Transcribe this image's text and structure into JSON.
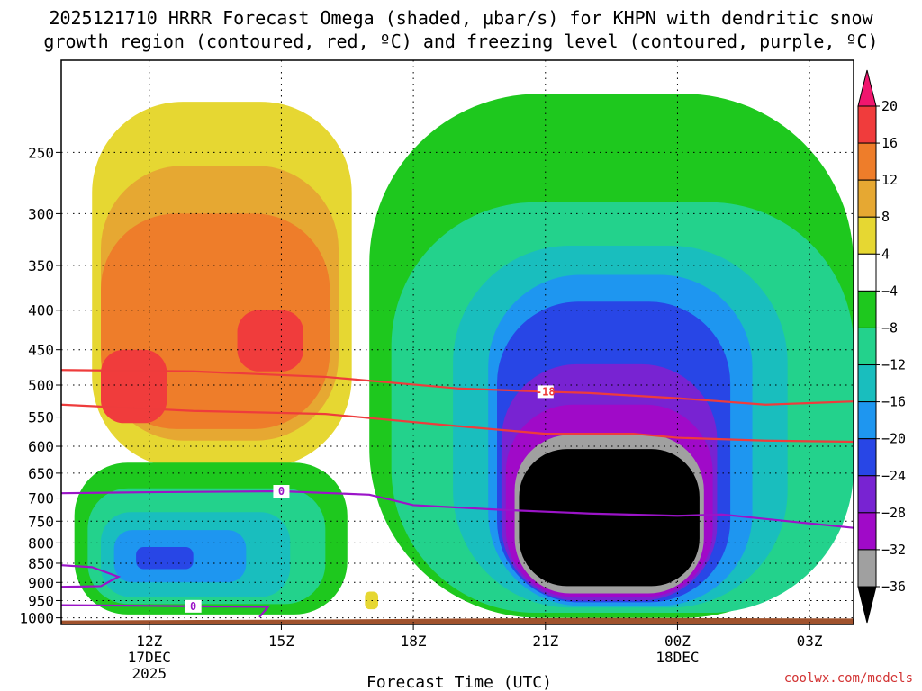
{
  "chart_data": {
    "type": "heatmap",
    "title_lines": [
      "2025121710 HRRR Forecast Omega (shaded, μbar/s) for KHPN with dendritic snow",
      "growth region (contoured, red, ºC) and freezing level (contoured, purple, ºC)"
    ],
    "xlabel": "Forecast Time (UTC)",
    "ylabel": "",
    "credit": "coolwx.com/models",
    "x_ticks": [
      {
        "hour": 12,
        "lines": [
          "12Z",
          "17DEC",
          "2025"
        ]
      },
      {
        "hour": 15,
        "lines": [
          "15Z"
        ]
      },
      {
        "hour": 18,
        "lines": [
          "18Z"
        ]
      },
      {
        "hour": 21,
        "lines": [
          "21Z"
        ]
      },
      {
        "hour": 24,
        "lines": [
          "00Z",
          "18DEC"
        ]
      },
      {
        "hour": 27,
        "lines": [
          "03Z"
        ]
      }
    ],
    "xlim_hours": [
      10,
      28
    ],
    "ylim_hpa": [
      1020,
      190
    ],
    "y_ticks": [
      250,
      300,
      350,
      400,
      450,
      500,
      550,
      600,
      650,
      700,
      750,
      800,
      850,
      900,
      950,
      1000
    ],
    "grid": true,
    "colorbar": {
      "label_values": [
        "20",
        "16",
        "12",
        "8",
        "4",
        "−4",
        "−8",
        "−12",
        "−16",
        "−20",
        "−24",
        "−28",
        "−32",
        "−36"
      ],
      "colors_top_to_bottom": [
        "#f0166e",
        "#f03c3c",
        "#ee7d2a",
        "#e6a832",
        "#e6d732",
        "#ffffff",
        "#1ec81e",
        "#23d28c",
        "#19bebe",
        "#1e96f0",
        "#2846e6",
        "#7823d2",
        "#a00ac8",
        "#a0a0a0",
        "#000000"
      ]
    },
    "omega_regions": [
      {
        "name": "early-rising-motion",
        "level": 4,
        "color": "#e6d732",
        "hours": [
          10.7,
          16.6
        ],
        "hpa": [
          215,
          640
        ]
      },
      {
        "name": "early-rising-motion",
        "level": 8,
        "color": "#e6a832",
        "hours": [
          10.9,
          16.3
        ],
        "hpa": [
          260,
          590
        ]
      },
      {
        "name": "early-rising-motion",
        "level": 12,
        "color": "#ee7d2a",
        "hours": [
          10.9,
          16.1
        ],
        "hpa": [
          300,
          570
        ]
      },
      {
        "name": "early-rising-motion-core-a",
        "level": 16,
        "color": "#f03c3c",
        "hours": [
          10.9,
          12.4
        ],
        "hpa": [
          450,
          560
        ]
      },
      {
        "name": "early-rising-motion-core-b",
        "level": 16,
        "color": "#f03c3c",
        "hours": [
          14.0,
          15.5
        ],
        "hpa": [
          400,
          480
        ]
      },
      {
        "name": "isolated-rising-motion",
        "level": 4,
        "color": "#e6d732",
        "hours": [
          16.9,
          17.2
        ],
        "hpa": [
          925,
          975
        ]
      },
      {
        "name": "lower-sinking-motion",
        "level": -4,
        "color": "#1ec81e",
        "hours": [
          10.3,
          16.5
        ],
        "hpa": [
          630,
          990
        ]
      },
      {
        "name": "lower-sinking-motion",
        "level": -8,
        "color": "#23d28c",
        "hours": [
          10.6,
          16.0
        ],
        "hpa": [
          680,
          960
        ]
      },
      {
        "name": "lower-sinking-motion",
        "level": -12,
        "color": "#19bebe",
        "hours": [
          10.9,
          15.2
        ],
        "hpa": [
          730,
          940
        ]
      },
      {
        "name": "lower-sinking-motion",
        "level": -16,
        "color": "#1e96f0",
        "hours": [
          11.2,
          14.2
        ],
        "hpa": [
          770,
          900
        ]
      },
      {
        "name": "lower-sinking-motion-core",
        "level": -20,
        "color": "#2846e6",
        "hours": [
          11.7,
          13.0
        ],
        "hpa": [
          810,
          865
        ]
      },
      {
        "name": "main-sinking-motion",
        "level": -4,
        "color": "#1ec81e",
        "hours": [
          17.0,
          28.0
        ],
        "hpa": [
          210,
          1000
        ]
      },
      {
        "name": "main-sinking-motion",
        "level": -8,
        "color": "#23d28c",
        "hours": [
          17.5,
          28.0
        ],
        "hpa": [
          290,
          985
        ]
      },
      {
        "name": "main-sinking-motion",
        "level": -12,
        "color": "#19bebe",
        "hours": [
          18.9,
          26.5
        ],
        "hpa": [
          330,
          970
        ]
      },
      {
        "name": "main-sinking-motion",
        "level": -16,
        "color": "#1e96f0",
        "hours": [
          19.7,
          25.7
        ],
        "hpa": [
          360,
          965
        ]
      },
      {
        "name": "main-sinking-motion",
        "level": -20,
        "color": "#2846e6",
        "hours": [
          19.9,
          25.2
        ],
        "hpa": [
          390,
          955
        ]
      },
      {
        "name": "main-sinking-motion",
        "level": -24,
        "color": "#7823d2",
        "hours": [
          20.0,
          24.9
        ],
        "hpa": [
          470,
          950
        ]
      },
      {
        "name": "main-sinking-motion",
        "level": -28,
        "color": "#a00ac8",
        "hours": [
          20.1,
          24.8
        ],
        "hpa": [
          530,
          940
        ]
      },
      {
        "name": "main-sinking-motion",
        "level": -32,
        "color": "#a0a0a0",
        "hours": [
          20.3,
          24.6
        ],
        "hpa": [
          580,
          930
        ]
      },
      {
        "name": "main-sinking-motion-core",
        "level": -36,
        "color": "#000000",
        "hours": [
          20.4,
          24.5
        ],
        "hpa": [
          605,
          910
        ]
      }
    ],
    "dendritic_growth_contours": [
      {
        "color": "#ee3c3c",
        "label": "-18",
        "label_hour": 21.0,
        "points": [
          [
            10,
            478
          ],
          [
            13,
            480
          ],
          [
            16,
            488
          ],
          [
            19,
            505
          ],
          [
            21,
            510
          ],
          [
            22,
            512
          ],
          [
            24,
            520
          ],
          [
            26,
            530
          ],
          [
            28,
            525
          ]
        ]
      },
      {
        "color": "#ee3c3c",
        "label": "",
        "label_hour": null,
        "points": [
          [
            10,
            530
          ],
          [
            13,
            540
          ],
          [
            16,
            545
          ],
          [
            19,
            565
          ],
          [
            21,
            578
          ],
          [
            23,
            578
          ],
          [
            24,
            585
          ],
          [
            26,
            590
          ],
          [
            28,
            592
          ]
        ]
      }
    ],
    "freezing_level_contours": [
      {
        "color": "#9b14c8",
        "label": "0",
        "label_hour": 15.0,
        "points": [
          [
            10,
            690
          ],
          [
            12,
            688
          ],
          [
            15,
            686
          ],
          [
            17,
            693
          ],
          [
            18,
            715
          ],
          [
            20,
            725
          ],
          [
            22,
            733
          ],
          [
            24,
            738
          ],
          [
            25,
            735
          ],
          [
            27,
            755
          ],
          [
            28,
            765
          ]
        ]
      },
      {
        "color": "#9b14c8",
        "label": "",
        "label_hour": null,
        "points": [
          [
            10,
            855
          ],
          [
            10.7,
            860
          ],
          [
            11.3,
            885
          ],
          [
            10.9,
            910
          ],
          [
            10,
            912
          ]
        ]
      },
      {
        "color": "#9b14c8",
        "label": "0",
        "label_hour": 13.0,
        "points": [
          [
            10,
            963
          ],
          [
            12,
            965
          ],
          [
            13.5,
            967
          ],
          [
            14.7,
            968
          ],
          [
            14.5,
            998
          ]
        ]
      }
    ],
    "terrain": {
      "color": "#a0522d",
      "top_hpa": [
        1008,
        1005,
        1000,
        1002
      ]
    }
  }
}
